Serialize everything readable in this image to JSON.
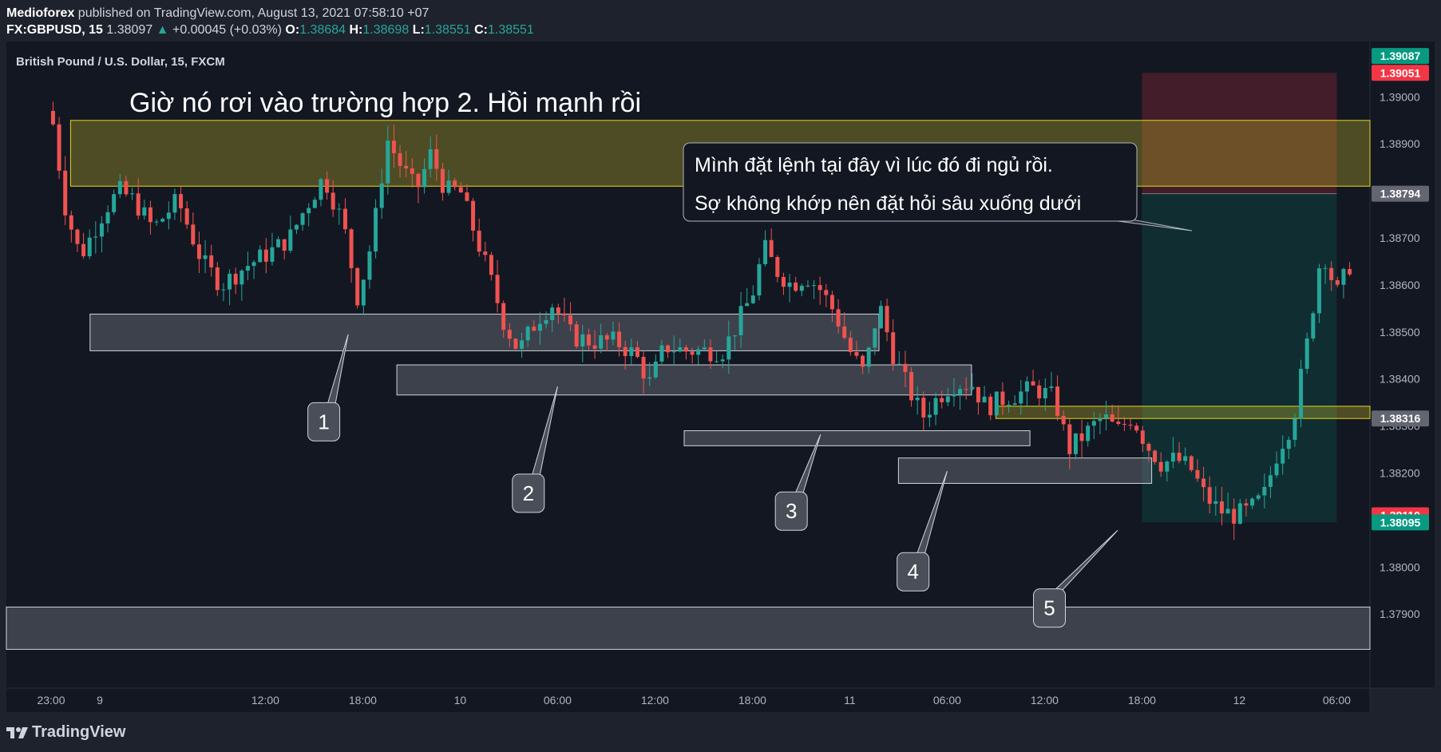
{
  "header": {
    "publisher": "Mediofo­rex",
    "published_text": "published on TradingView.com, August 13, 2021 07:58:10 +07",
    "symbol": "FX:GBPUSD, 15",
    "last": "1.38097",
    "arrow": "▲",
    "change": "+0.00045 (+0.03%)",
    "o_label": "O:",
    "o": "1.38684",
    "h_label": "H:",
    "h": "1.38698",
    "l_label": "L:",
    "l": "1.38551",
    "c_label": "C:",
    "c": "1.38551"
  },
  "footer": {
    "brand": "TradingView"
  },
  "chart_data": {
    "type": "candlestick",
    "title": "British Pound / U.S. Dollar, 15, FXCM",
    "currency": "USD",
    "headline": "Giờ nó rơi vào trường hợp 2. Hồi mạnh rồi",
    "note_lines": [
      "Mình đặt lệnh tại đây vì lúc đó đi ngủ rồi.",
      "Sợ không khớp nên đặt hỏi sâu xuống dưới"
    ],
    "ylim": [
      1.3785,
      1.3913
    ],
    "y_ticks": [
      "1.37900",
      "1.38000",
      "1.38100",
      "1.38200",
      "1.38300",
      "1.38400",
      "1.38500",
      "1.38600",
      "1.38700",
      "1.38800",
      "1.38900",
      "1.39000"
    ],
    "x_ticks": [
      {
        "label": "23:00",
        "t": 0
      },
      {
        "label": "9",
        "t": 0.5
      },
      {
        "label": "12:00",
        "t": 2.2
      },
      {
        "label": "18:00",
        "t": 3.2
      },
      {
        "label": "10",
        "t": 4.2
      },
      {
        "label": "06:00",
        "t": 5.2
      },
      {
        "label": "12:00",
        "t": 6.2
      },
      {
        "label": "18:00",
        "t": 7.2
      },
      {
        "label": "11",
        "t": 8.2
      },
      {
        "label": "06:00",
        "t": 9.2
      },
      {
        "label": "12:00",
        "t": 10.2
      },
      {
        "label": "18:00",
        "t": 11.2
      },
      {
        "label": "12",
        "t": 12.2
      },
      {
        "label": "06:00",
        "t": 13.2
      }
    ],
    "price_tags": [
      {
        "value": 1.39087,
        "color": "#089981"
      },
      {
        "value": 1.39051,
        "color": "#f23645"
      },
      {
        "value": 1.38794,
        "color": "#636670"
      },
      {
        "value": 1.38316,
        "color": "#636670"
      },
      {
        "value": 1.3811,
        "color": "#f23645"
      },
      {
        "value": 1.38095,
        "color": "#089981"
      }
    ],
    "path": [
      [
        0,
        1.3897
      ],
      [
        0.05,
        1.389
      ],
      [
        0.15,
        1.3876
      ],
      [
        0.3,
        1.3866
      ],
      [
        0.45,
        1.3872
      ],
      [
        0.55,
        1.3876
      ],
      [
        0.7,
        1.388
      ],
      [
        0.85,
        1.3878
      ],
      [
        1.05,
        1.3872
      ],
      [
        1.3,
        1.3878
      ],
      [
        1.55,
        1.3865
      ],
      [
        1.75,
        1.386
      ],
      [
        2.0,
        1.3864
      ],
      [
        2.25,
        1.3867
      ],
      [
        2.45,
        1.387
      ],
      [
        2.6,
        1.3876
      ],
      [
        2.8,
        1.3883
      ],
      [
        3.0,
        1.3873
      ],
      [
        3.15,
        1.3857
      ],
      [
        3.3,
        1.387
      ],
      [
        3.45,
        1.3891
      ],
      [
        3.6,
        1.3885
      ],
      [
        3.75,
        1.388
      ],
      [
        3.9,
        1.3888
      ],
      [
        4.05,
        1.388
      ],
      [
        4.2,
        1.388
      ],
      [
        4.35,
        1.3871
      ],
      [
        4.5,
        1.3862
      ],
      [
        4.65,
        1.3852
      ],
      [
        4.8,
        1.3846
      ],
      [
        5.0,
        1.3853
      ],
      [
        5.15,
        1.3856
      ],
      [
        5.35,
        1.3849
      ],
      [
        5.55,
        1.3848
      ],
      [
        5.8,
        1.3848
      ],
      [
        6.0,
        1.3845
      ],
      [
        6.15,
        1.3839
      ],
      [
        6.3,
        1.3847
      ],
      [
        6.5,
        1.3846
      ],
      [
        6.7,
        1.3846
      ],
      [
        6.9,
        1.3846
      ],
      [
        7.05,
        1.3852
      ],
      [
        7.2,
        1.3858
      ],
      [
        7.32,
        1.3868
      ],
      [
        7.45,
        1.3863
      ],
      [
        7.6,
        1.386
      ],
      [
        7.75,
        1.3862
      ],
      [
        7.9,
        1.3859
      ],
      [
        8.05,
        1.3854
      ],
      [
        8.2,
        1.3846
      ],
      [
        8.35,
        1.3841
      ],
      [
        8.5,
        1.3856
      ],
      [
        8.65,
        1.3845
      ],
      [
        8.8,
        1.3838
      ],
      [
        8.95,
        1.3832
      ],
      [
        9.1,
        1.3836
      ],
      [
        9.25,
        1.3839
      ],
      [
        9.45,
        1.3839
      ],
      [
        9.6,
        1.3834
      ],
      [
        9.8,
        1.3836
      ],
      [
        9.95,
        1.3837
      ],
      [
        10.1,
        1.3838
      ],
      [
        10.3,
        1.3836
      ],
      [
        10.45,
        1.3825
      ],
      [
        10.6,
        1.3828
      ],
      [
        10.8,
        1.3832
      ],
      [
        10.95,
        1.3829
      ],
      [
        11.1,
        1.3832
      ],
      [
        11.25,
        1.3826
      ],
      [
        11.4,
        1.3822
      ],
      [
        11.55,
        1.3823
      ],
      [
        11.7,
        1.3821
      ],
      [
        11.85,
        1.3815
      ],
      [
        12.0,
        1.3812
      ],
      [
        12.15,
        1.3811
      ],
      [
        12.3,
        1.3812
      ],
      [
        12.45,
        1.3815
      ],
      [
        12.6,
        1.3825
      ],
      [
        12.75,
        1.3831
      ],
      [
        12.9,
        1.3848
      ],
      [
        13.05,
        1.3868
      ],
      [
        13.2,
        1.3858
      ],
      [
        13.35,
        1.3865
      ]
    ],
    "zones": [
      {
        "t0": 0.2,
        "t1": 14.2,
        "top": 1.3895,
        "bottom": 1.3881,
        "style": "yellow"
      },
      {
        "t0": 0.4,
        "t1": 8.5,
        "top": 1.38538,
        "bottom": 1.3846,
        "style": "gray"
      },
      {
        "t0": 3.55,
        "t1": 9.45,
        "top": 1.3843,
        "bottom": 1.38366,
        "style": "gray"
      },
      {
        "t0": 6.5,
        "t1": 10.05,
        "top": 1.3829,
        "bottom": 1.38258,
        "style": "gray"
      },
      {
        "t0": 8.7,
        "t1": 11.3,
        "top": 1.38232,
        "bottom": 1.38178,
        "style": "gray"
      },
      {
        "t0": 9.7,
        "t1": 14.2,
        "top": 1.38342,
        "bottom": 1.38316,
        "style": "yellow"
      },
      {
        "t0": -0.5,
        "t1": 14.2,
        "top": 1.37915,
        "bottom": 1.37825,
        "style": "gray"
      }
    ],
    "position": {
      "t0": 11.2,
      "t1": 13.2,
      "entry": 1.38794,
      "stop": 1.39051,
      "target": 1.38095
    },
    "callouts": [
      {
        "label": "1",
        "t": 2.8,
        "price": 1.38309,
        "tip_t": 3.05,
        "tip_p": 1.38495
      },
      {
        "label": "2",
        "t": 4.9,
        "price": 1.38157,
        "tip_t": 5.2,
        "tip_p": 1.38384
      },
      {
        "label": "3",
        "t": 7.6,
        "price": 1.38119,
        "tip_t": 7.9,
        "tip_p": 1.38282
      },
      {
        "label": "4",
        "t": 8.85,
        "price": 1.3799,
        "tip_t": 9.2,
        "tip_p": 1.38204
      },
      {
        "label": "5",
        "t": 10.25,
        "price": 1.37913,
        "tip_t": 10.95,
        "tip_p": 1.38078
      }
    ]
  }
}
